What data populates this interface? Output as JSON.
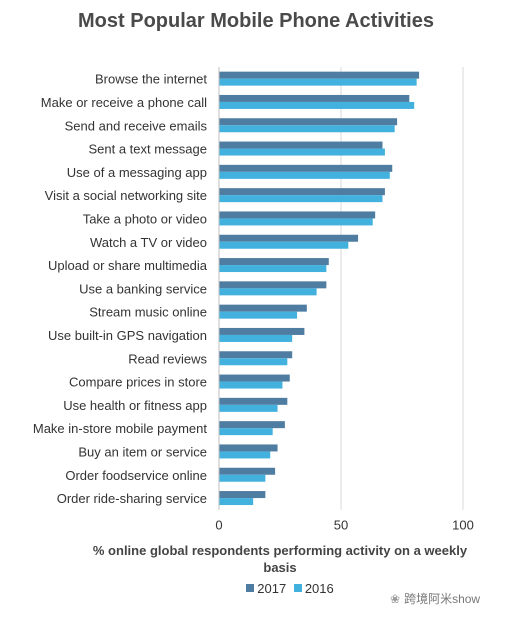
{
  "chart_data": {
    "type": "bar",
    "orientation": "horizontal",
    "title": "Most Popular Mobile Phone Activities",
    "xlabel": "% online global respondents performing activity on a weekly basis",
    "ylabel": "",
    "xlim": [
      0,
      100
    ],
    "ticks": [
      0,
      50,
      100
    ],
    "grid": true,
    "legend_position": "bottom",
    "categories": [
      "Browse the internet",
      "Make or receive a phone call",
      "Send and receive emails",
      "Sent a text message",
      "Use of a messaging app",
      "Visit a social networking site",
      "Take a photo or video",
      "Watch a TV or video",
      "Upload or share multimedia",
      "Use a banking service",
      "Stream music online",
      "Use built-in GPS navigation",
      "Read reviews",
      "Compare prices in store",
      "Use health or fitness app",
      "Make in-store mobile payment",
      "Buy an item or service",
      "Order foodservice online",
      "Order ride-sharing service"
    ],
    "series": [
      {
        "name": "2017",
        "color": "#4f7da1",
        "values": [
          82,
          78,
          73,
          67,
          71,
          68,
          64,
          57,
          45,
          44,
          36,
          35,
          30,
          29,
          28,
          27,
          24,
          23,
          19
        ]
      },
      {
        "name": "2016",
        "color": "#43b1de",
        "values": [
          81,
          80,
          72,
          68,
          70,
          67,
          63,
          53,
          44,
          40,
          32,
          30,
          28,
          26,
          24,
          22,
          21,
          19,
          14
        ]
      }
    ]
  },
  "watermark": {
    "text": "跨境阿米show",
    "icon": "wechat-icon"
  }
}
